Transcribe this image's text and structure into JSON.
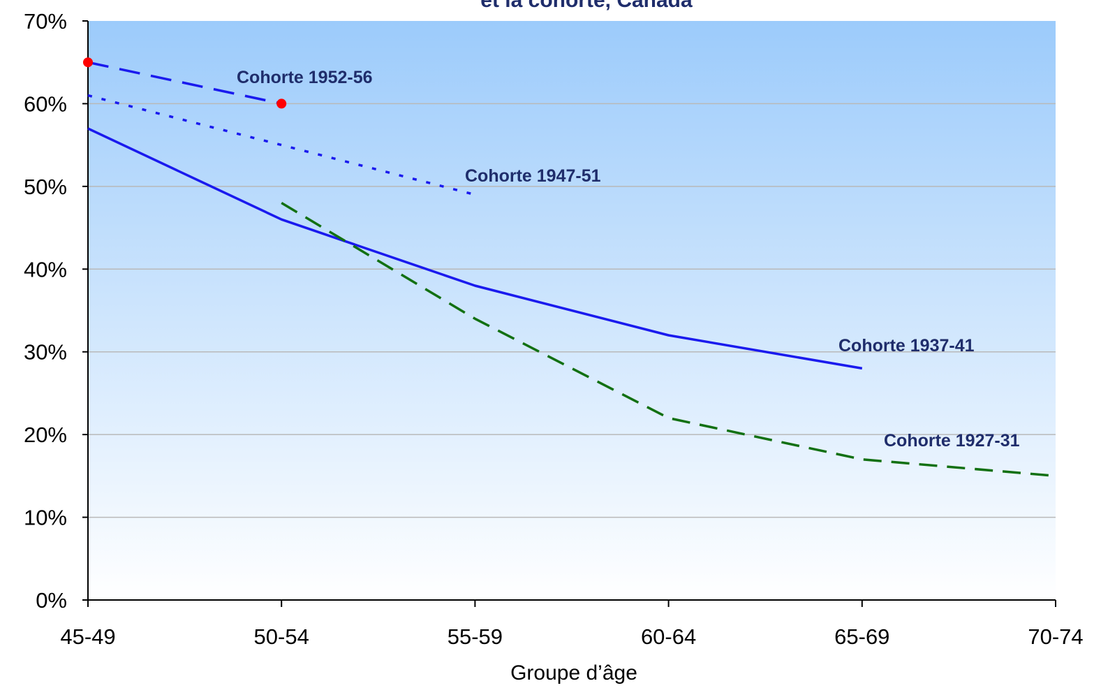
{
  "chart_data": {
    "type": "line",
    "title": "et la cohorte, Canada",
    "xlabel": "Groupe d’âge",
    "ylabel": "",
    "categories": [
      "45-49",
      "50-54",
      "55-59",
      "60-64",
      "65-69",
      "70-74"
    ],
    "y_tick_labels": [
      "0%",
      "10%",
      "20%",
      "30%",
      "40%",
      "50%",
      "60%",
      "70%"
    ],
    "ylim": [
      0,
      70
    ],
    "grid": true,
    "legend": "none",
    "series": [
      {
        "name": "Cohorte 1952-56",
        "values": [
          65,
          60,
          null,
          null,
          null,
          null
        ],
        "style": "long-dash",
        "color": "#1a1aee",
        "markers": [
          true,
          true,
          false,
          false,
          false,
          false
        ],
        "marker_color": "#ff0000"
      },
      {
        "name": "Cohorte 1947-51",
        "values": [
          61,
          55,
          49,
          null,
          null,
          null
        ],
        "style": "dotted",
        "color": "#1a1aee"
      },
      {
        "name": "Cohorte 1937-41",
        "values": [
          57,
          46,
          38,
          32,
          28,
          null
        ],
        "style": "solid",
        "color": "#1a1aee"
      },
      {
        "name": "Cohorte 1927-31",
        "values": [
          null,
          48,
          34,
          22,
          17,
          15
        ],
        "style": "dash",
        "color": "#127012"
      }
    ]
  },
  "colors": {
    "plot_top": "#9ccbfb",
    "plot_bottom": "#ffffff",
    "gridline": "#b9b9b9",
    "axis": "#000000",
    "label_text": "#1f2d6b"
  }
}
